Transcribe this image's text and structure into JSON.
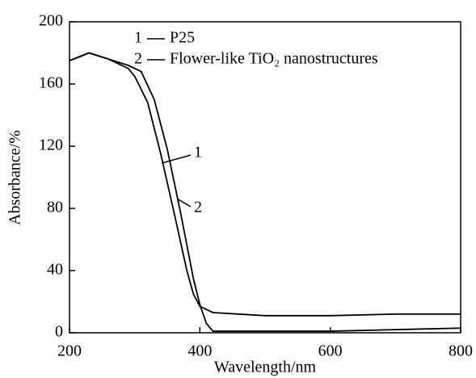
{
  "chart_data": {
    "type": "line",
    "x_label": "Wavelength/nm",
    "y_label": "Absorbance/%",
    "xlim": [
      200,
      800
    ],
    "xticks": [
      200,
      400,
      600,
      800
    ],
    "ylim": [
      0,
      200
    ],
    "yticks": [
      0,
      40,
      80,
      120,
      160,
      200
    ],
    "grid": false,
    "legend": "upper right",
    "series": [
      {
        "name": "P25",
        "label": "1",
        "color": "#000000",
        "x": [
          200,
          230,
          260,
          290,
          300,
          320,
          340,
          360,
          380,
          390,
          400,
          420,
          500,
          600,
          700,
          800
        ],
        "values": [
          175,
          180,
          176,
          170,
          165,
          148,
          115,
          78,
          40,
          25,
          17,
          13,
          11,
          11,
          12,
          12
        ]
      },
      {
        "name": "Flower-like TiO₂ nanostructures",
        "label": "2",
        "color": "#000000",
        "x": [
          200,
          230,
          260,
          290,
          310,
          330,
          350,
          370,
          390,
          400,
          410,
          420,
          500,
          600,
          700,
          800
        ],
        "values": [
          175,
          180,
          176,
          172,
          168,
          150,
          118,
          78,
          35,
          18,
          6,
          1,
          1,
          1,
          2,
          3
        ]
      }
    ]
  }
}
